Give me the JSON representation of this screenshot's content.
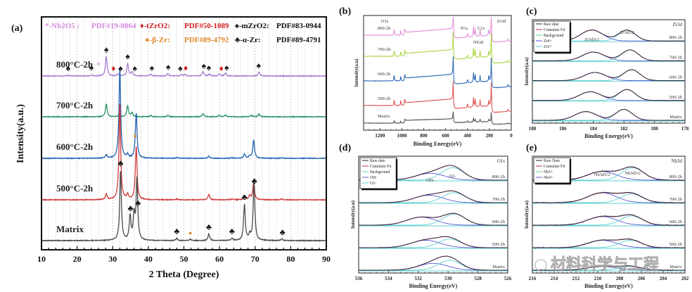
{
  "chart_data": [
    {
      "panel": "(a)",
      "type": "line",
      "title": "",
      "xlabel": "2 Theta (Degree)",
      "ylabel": "Intensity(a.u.)",
      "xlim": [
        10,
        90
      ],
      "xticks": [
        10,
        20,
        30,
        40,
        50,
        60,
        70,
        80,
        90
      ],
      "grid": true,
      "legend": [
        {
          "symbol": "*",
          "label": "-Nb2O5 :",
          "pdf": "PDF#19-0864",
          "color": "#d68be0"
        },
        {
          "symbol": "♦",
          "label": "-tZrO2:",
          "pdf": "PDF#50-1089",
          "color": "#d11f1f"
        },
        {
          "symbol": "♠",
          "label": "-mZrO2:",
          "pdf": "PDF#83-0944",
          "color": "#111111"
        },
        {
          "symbol": "●",
          "label": "-β-Zr:",
          "pdf": "PDF#89-4792",
          "color": "#e08a2a"
        },
        {
          "symbol": "♣",
          "label": "-α-Zr:",
          "pdf": "PDF#89-4791",
          "color": "#111111"
        }
      ],
      "legend_position": "top",
      "series": [
        {
          "name": "800°C-2h",
          "color": "#a67fd1",
          "peaks": [
            [
              17.5,
              0.02
            ],
            [
              24,
              0.03
            ],
            [
              28.2,
              0.5
            ],
            [
              31.5,
              0.05
            ],
            [
              34.2,
              0.32
            ],
            [
              35.4,
              0.1
            ],
            [
              40.7,
              0.05
            ],
            [
              45.5,
              0.06
            ],
            [
              49.3,
              0.04
            ],
            [
              50.3,
              0.04
            ],
            [
              55.4,
              0.12
            ],
            [
              57.2,
              0.05
            ],
            [
              60,
              0.05
            ],
            [
              61.7,
              0.07
            ],
            [
              71.1,
              0.1
            ]
          ]
        },
        {
          "name": "700°C-2h",
          "color": "#2a9466",
          "peaks": [
            [
              28.2,
              0.45
            ],
            [
              31.5,
              0.04
            ],
            [
              34.2,
              0.4
            ],
            [
              35.4,
              0.15
            ],
            [
              40.7,
              0.05
            ],
            [
              45.5,
              0.05
            ],
            [
              55.4,
              0.12
            ],
            [
              59.9,
              0.05
            ],
            [
              61.7,
              0.06
            ],
            [
              69,
              0.05
            ],
            [
              71.1,
              0.1
            ]
          ]
        },
        {
          "name": "600°C-2h",
          "color": "#2463b3",
          "peaks": [
            [
              28.2,
              0.12
            ],
            [
              32,
              3.2
            ],
            [
              34.2,
              0.12
            ],
            [
              36.6,
              1.6
            ],
            [
              48,
              0.03
            ],
            [
              57,
              0.08
            ],
            [
              63.5,
              0.02
            ],
            [
              67,
              0.15
            ],
            [
              68.5,
              0.08
            ],
            [
              69.6,
              0.65
            ],
            [
              77.5,
              0.02
            ]
          ]
        },
        {
          "name": "500°C-2h",
          "color": "#d23a3a",
          "peaks": [
            [
              28.2,
              0.2
            ],
            [
              32,
              3.4
            ],
            [
              34.2,
              0.18
            ],
            [
              36.6,
              1.9
            ],
            [
              48,
              0.03
            ],
            [
              57,
              0.2
            ],
            [
              63.5,
              0.02
            ],
            [
              67,
              0.15
            ],
            [
              68.5,
              0.15
            ],
            [
              69.6,
              0.62
            ],
            [
              77.5,
              0.03
            ]
          ]
        },
        {
          "name": "Matrix",
          "color": "#4b4b4b",
          "peaks": [
            [
              32.2,
              1.6
            ],
            [
              34.9,
              0.55
            ],
            [
              36,
              0.55
            ],
            [
              36.8,
              1.4
            ],
            [
              48,
              0.05
            ],
            [
              51.8,
              0.03
            ],
            [
              57,
              0.15
            ],
            [
              63.5,
              0.05
            ],
            [
              67,
              0.82
            ],
            [
              68.5,
              0.12
            ],
            [
              69.7,
              1.35
            ],
            [
              77.5,
              0.04
            ]
          ]
        }
      ],
      "markers": [
        {
          "series": "800°C-2h",
          "items": [
            [
              "♠",
              17.5
            ],
            [
              "♠",
              24
            ],
            [
              "*",
              26
            ],
            [
              "*",
              28.2
            ],
            [
              "♠",
              28.2
            ],
            [
              "♦",
              30.2
            ],
            [
              "♠",
              32.2
            ],
            [
              "♠",
              34.2
            ],
            [
              "♠",
              36.2
            ],
            [
              "♠",
              41
            ],
            [
              "♠",
              45.6
            ],
            [
              "♠",
              49
            ],
            [
              "♦",
              50.5
            ],
            [
              "♠",
              55.6
            ],
            [
              "♠",
              57
            ],
            [
              "♦",
              60.5
            ],
            [
              "♠",
              62
            ],
            [
              "♠",
              71
            ]
          ]
        },
        {
          "series": "Matrix",
          "items": [
            [
              "♣",
              32.2
            ],
            [
              "♣",
              35
            ],
            [
              "●",
              36.3
            ],
            [
              "♣",
              37.1
            ],
            [
              "♣",
              48
            ],
            [
              "●",
              51.8
            ],
            [
              "♣",
              57
            ],
            [
              "♣",
              63.5
            ],
            [
              "♣",
              67
            ],
            [
              "♣",
              69.8
            ],
            [
              "♣",
              77.7
            ]
          ]
        }
      ]
    },
    {
      "panel": "(b)",
      "type": "line",
      "xlabel": "Binding Energy(eV)",
      "ylabel": "Intensity(a.u)",
      "xlim": [
        1350,
        0
      ],
      "xticks": [
        1200,
        1000,
        800,
        600,
        400,
        200,
        0
      ],
      "annotations": [
        "O1s",
        "N1s",
        "C1s",
        "Zr3d",
        "Nb3d"
      ],
      "series": [
        {
          "name": "800-2h",
          "color": "#e08bd9"
        },
        {
          "name": "700-2h",
          "color": "#a8d43a"
        },
        {
          "name": "600-2h",
          "color": "#2463b3"
        },
        {
          "name": "500-2h",
          "color": "#e0494a"
        },
        {
          "name": "Matrix",
          "color": "#4b4b4b"
        }
      ],
      "peaks_eV": [
        1070,
        1010,
        975,
        530,
        400,
        345,
        330,
        285,
        205,
        182,
        30
      ]
    },
    {
      "panel": "(c)",
      "type": "line",
      "xlabel": "Binding Energy(eV)",
      "ylabel": "Intensity(a.u)",
      "xlim": [
        188,
        178
      ],
      "xticks": [
        188,
        186,
        184,
        182,
        180,
        178
      ],
      "corner_label": "Zr3d",
      "annotations": [
        "Zr3d3/2",
        "Zr3d5/2"
      ],
      "legend": [
        "Raw date",
        "Cumulate Fit",
        "Background",
        "Zr4+",
        "Zr2+"
      ],
      "legend_colors": [
        "#222222",
        "#c0304a",
        "#5fd08a",
        "#5a5ad0",
        "#5fd0d0"
      ],
      "legend_position": "top-left",
      "series": [
        {
          "name": "800-2h",
          "peaks": [
            [
              184.1,
              1
            ],
            [
              181.8,
              1
            ]
          ]
        },
        {
          "name": "700-2h",
          "peaks": [
            [
              184.0,
              0.8
            ],
            [
              181.6,
              1
            ]
          ]
        },
        {
          "name": "600-2h",
          "peaks": [
            [
              183.9,
              0.75
            ],
            [
              181.5,
              1
            ]
          ]
        },
        {
          "name": "500-2h",
          "peaks": [
            [
              184.2,
              0.8
            ],
            [
              181.8,
              1
            ]
          ]
        },
        {
          "name": "Matrix",
          "peaks": [
            [
              184.5,
              0.8
            ],
            [
              182.0,
              1
            ]
          ]
        }
      ]
    },
    {
      "panel": "(d)",
      "type": "line",
      "xlabel": "Binding Energy(eV)",
      "ylabel": "Intensity(a.u)",
      "xlim": [
        536,
        526
      ],
      "xticks": [
        536,
        534,
        532,
        530,
        528,
        526
      ],
      "corner_label": "O1s",
      "annotations": [
        "OH-",
        "O2-"
      ],
      "legend": [
        "Raw date",
        "Cumulate Fit",
        "Background",
        "OH-",
        "O2-"
      ],
      "legend_colors": [
        "#222222",
        "#c0304a",
        "#5fd08a",
        "#5a5ad0",
        "#5fd0d0"
      ],
      "legend_position": "top-left",
      "series": [
        {
          "name": "800-2h",
          "peaks": [
            [
              531.2,
              0.55
            ],
            [
              529.7,
              1
            ]
          ]
        },
        {
          "name": "700-2h",
          "peaks": [
            [
              531.3,
              0.6
            ],
            [
              529.6,
              0.8
            ]
          ]
        },
        {
          "name": "600-2h",
          "peaks": [
            [
              531.8,
              0.65
            ],
            [
              529.6,
              0.9
            ]
          ]
        },
        {
          "name": "500-2h",
          "peaks": [
            [
              531.5,
              0.6
            ],
            [
              529.9,
              0.7
            ]
          ]
        },
        {
          "name": "Matrix",
          "peaks": [
            [
              531,
              0.55
            ],
            [
              529.9,
              0.8
            ]
          ]
        }
      ]
    },
    {
      "panel": "(e)",
      "type": "line",
      "xlabel": "Binding Energy(eV)",
      "ylabel": "Intensity(a.u)",
      "xlim": [
        216,
        202
      ],
      "xticks": [
        216,
        214,
        212,
        210,
        208,
        206,
        204,
        202
      ],
      "corner_label": "Nb3d",
      "annotations": [
        "Nb3d3/2",
        "Nb3d5/2"
      ],
      "legend": [
        "Raw Date",
        "Cumulate Fit",
        "Nb5+",
        "Nb4+"
      ],
      "legend_colors": [
        "#222222",
        "#c0304a",
        "#5fd08a",
        "#5a5ad0"
      ],
      "legend_position": "top-left",
      "series": [
        {
          "name": "800-2h",
          "peaks": [
            [
              209.6,
              0.7
            ],
            [
              206.8,
              1
            ]
          ]
        },
        {
          "name": "700-2h",
          "peaks": [
            [
              209.6,
              0.8
            ],
            [
              206.9,
              0.7
            ]
          ]
        },
        {
          "name": "600-2h",
          "peaks": [
            [
              209.6,
              0.7
            ],
            [
              206.9,
              0.75
            ]
          ]
        },
        {
          "name": "500-2h",
          "peaks": [
            [
              209.6,
              0.6
            ],
            [
              207.0,
              0.6
            ]
          ]
        },
        {
          "name": "Matrix",
          "peaks": [
            [
              209.6,
              0.3
            ],
            [
              207.0,
              0.3
            ]
          ]
        }
      ]
    }
  ],
  "panel_labels": [
    "(a)",
    "(b)",
    "(c)",
    "(d)",
    "(e)"
  ],
  "watermark": "材料科学与工程"
}
